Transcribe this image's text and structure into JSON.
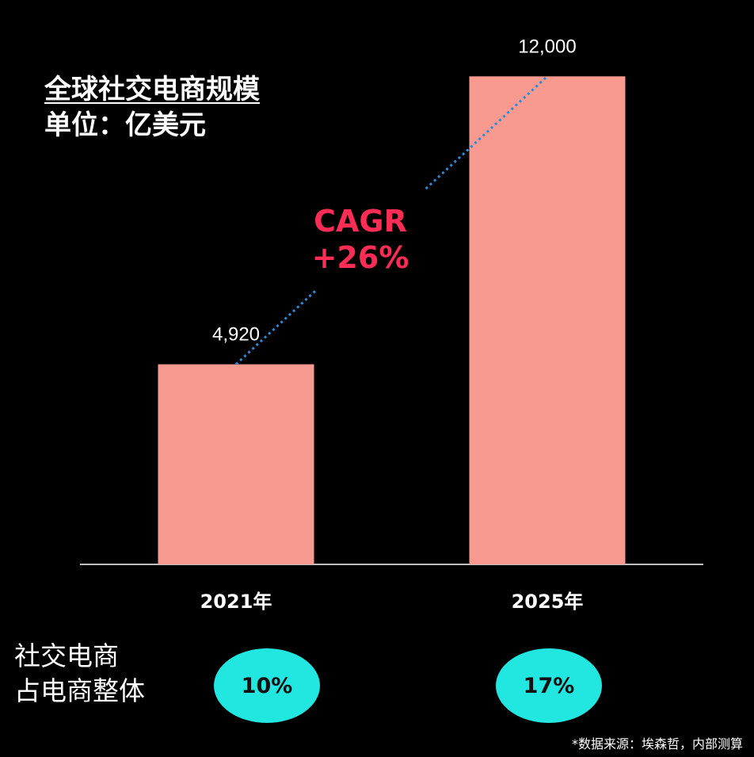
{
  "title": "全球社交电商规模",
  "unit": "单位：亿美元",
  "chart_data": {
    "type": "bar",
    "categories": [
      "2021年",
      "2025年"
    ],
    "values": [
      4920,
      12000
    ],
    "data_labels": [
      "4,920",
      "12,000"
    ],
    "ylim": [
      0,
      13000
    ],
    "grid": false,
    "bar_color": "#f89a8f",
    "trend_color": "#2a8bdc"
  },
  "annotation": {
    "line1": "CAGR",
    "line2": "+26%",
    "color": "#ff2d55"
  },
  "share": {
    "label_line1": "社交电商",
    "label_line2": "占电商整体",
    "values": [
      "10%",
      "17%"
    ],
    "color": "#22e6e0"
  },
  "source": "*数据来源：埃森哲，内部测算"
}
